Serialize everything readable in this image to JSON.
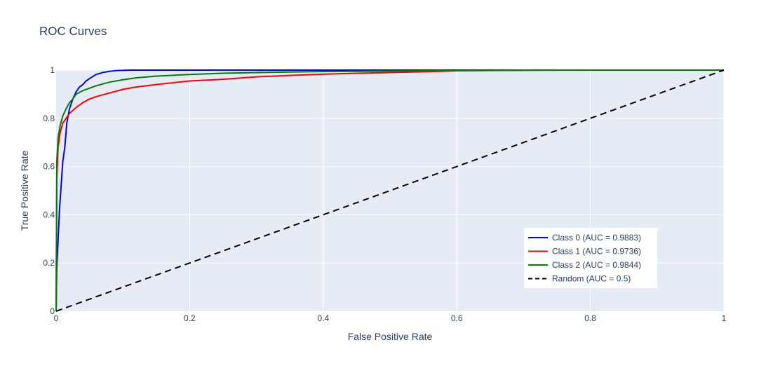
{
  "chart_data": {
    "type": "line",
    "title": "ROC Curves",
    "xlabel": "False Positive Rate",
    "ylabel": "True Positive Rate",
    "xlim": [
      0,
      1
    ],
    "ylim": [
      0,
      1
    ],
    "x_ticks": [
      0,
      0.2,
      0.4,
      0.6,
      0.8,
      1
    ],
    "x_tick_labels": [
      "0",
      "0.2",
      "0.4",
      "0.6",
      "0.8",
      "1"
    ],
    "y_ticks": [
      0,
      0.2,
      0.4,
      0.6,
      0.8,
      1
    ],
    "y_tick_labels": [
      "0",
      "0.2",
      "0.4",
      "0.6",
      "0.8",
      "1"
    ],
    "grid": true,
    "legend_position": "bottom-right",
    "plot_background": "#e5ecf6",
    "series": [
      {
        "name": "Class 0 (AUC = 0.9883)",
        "color": "#0000ff",
        "dash": "solid",
        "x": [
          0,
          0.001,
          0.003,
          0.005,
          0.008,
          0.01,
          0.013,
          0.016,
          0.02,
          0.025,
          0.03,
          0.035,
          0.04,
          0.045,
          0.05,
          0.06,
          0.07,
          0.08,
          0.09,
          0.1,
          0.11,
          0.15,
          0.3,
          0.5,
          0.7,
          1.0
        ],
        "y": [
          0,
          0.18,
          0.3,
          0.42,
          0.54,
          0.62,
          0.68,
          0.78,
          0.84,
          0.88,
          0.91,
          0.93,
          0.94,
          0.955,
          0.965,
          0.982,
          0.99,
          0.995,
          0.998,
          0.999,
          1.0,
          1.0,
          1.0,
          1.0,
          1.0,
          1.0
        ]
      },
      {
        "name": "Class 1 (AUC = 0.9736)",
        "color": "#ff0000",
        "dash": "solid",
        "x": [
          0,
          0.001,
          0.003,
          0.006,
          0.01,
          0.015,
          0.02,
          0.03,
          0.04,
          0.05,
          0.06,
          0.08,
          0.1,
          0.12,
          0.15,
          0.2,
          0.25,
          0.3,
          0.35,
          0.4,
          0.45,
          0.5,
          0.55,
          0.6,
          0.7,
          0.8,
          0.9,
          1.0
        ],
        "y": [
          0,
          0.55,
          0.68,
          0.74,
          0.78,
          0.8,
          0.82,
          0.845,
          0.865,
          0.88,
          0.89,
          0.905,
          0.92,
          0.93,
          0.94,
          0.955,
          0.962,
          0.972,
          0.978,
          0.983,
          0.987,
          0.99,
          0.993,
          0.997,
          1.0,
          1.0,
          1.0,
          1.0
        ]
      },
      {
        "name": "Class 2 (AUC = 0.9844)",
        "color": "#008000",
        "dash": "solid",
        "x": [
          0,
          0.001,
          0.003,
          0.006,
          0.01,
          0.015,
          0.02,
          0.025,
          0.03,
          0.04,
          0.05,
          0.06,
          0.08,
          0.1,
          0.12,
          0.15,
          0.2,
          0.25,
          0.3,
          0.35,
          0.4,
          0.5,
          0.6,
          0.7,
          0.8,
          0.9,
          1.0
        ],
        "y": [
          0,
          0.62,
          0.72,
          0.77,
          0.81,
          0.84,
          0.865,
          0.88,
          0.9,
          0.915,
          0.925,
          0.935,
          0.95,
          0.96,
          0.968,
          0.975,
          0.982,
          0.987,
          0.99,
          0.992,
          0.994,
          0.996,
          0.998,
          0.999,
          1.0,
          1.0,
          1.0
        ]
      },
      {
        "name": "Random (AUC = 0.5)",
        "color": "#000000",
        "dash": "dash",
        "x": [
          0,
          1
        ],
        "y": [
          0,
          1
        ]
      }
    ]
  }
}
